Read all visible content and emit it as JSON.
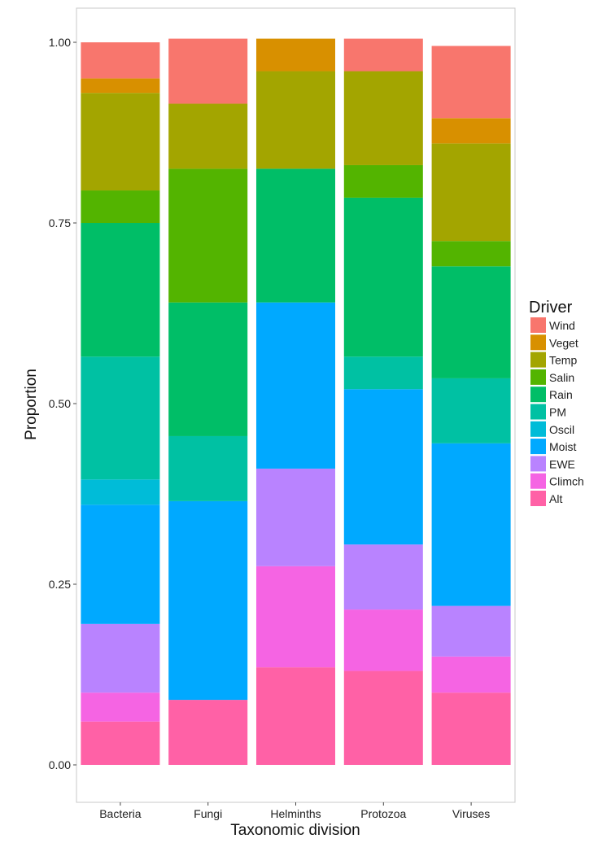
{
  "chart_data": {
    "type": "bar",
    "stacked": true,
    "xlabel": "Taxonomic division",
    "ylabel": "Proportion",
    "ylim": [
      0,
      1
    ],
    "yticks": [
      "0.00",
      "0.25",
      "0.50",
      "0.75",
      "1.00"
    ],
    "ytick_values": [
      0,
      0.25,
      0.5,
      0.75,
      1.0
    ],
    "grid": false,
    "legend_position": "right",
    "legend_title": "Driver",
    "categories": [
      "Bacteria",
      "Fungi",
      "Helminths",
      "Protozoa",
      "Viruses"
    ],
    "series": [
      {
        "name": "Alt",
        "color": "#FF61A6",
        "values": [
          0.06,
          0.09,
          0.135,
          0.13,
          0.1
        ]
      },
      {
        "name": "Climch",
        "color": "#F564E3",
        "values": [
          0.04,
          0.0,
          0.14,
          0.085,
          0.05
        ]
      },
      {
        "name": "EWE",
        "color": "#B983FF",
        "values": [
          0.095,
          0.0,
          0.135,
          0.09,
          0.07
        ]
      },
      {
        "name": "Moist",
        "color": "#00A9FF",
        "values": [
          0.165,
          0.275,
          0.23,
          0.215,
          0.225
        ]
      },
      {
        "name": "Oscil",
        "color": "#00BCD8",
        "values": [
          0.035,
          0.0,
          0.0,
          0.0,
          0.0
        ]
      },
      {
        "name": "PM",
        "color": "#00C1A3",
        "values": [
          0.17,
          0.09,
          0.0,
          0.045,
          0.09
        ]
      },
      {
        "name": "Rain",
        "color": "#00BE67",
        "values": [
          0.185,
          0.185,
          0.185,
          0.22,
          0.155
        ]
      },
      {
        "name": "Salin",
        "color": "#53B400",
        "values": [
          0.045,
          0.185,
          0.0,
          0.045,
          0.035
        ]
      },
      {
        "name": "Temp",
        "color": "#A3A500",
        "values": [
          0.135,
          0.09,
          0.135,
          0.13,
          0.135
        ]
      },
      {
        "name": "Veget",
        "color": "#D89000",
        "values": [
          0.02,
          0.0,
          0.045,
          0.0,
          0.035
        ]
      },
      {
        "name": "Wind",
        "color": "#F8766D",
        "values": [
          0.05,
          0.09,
          0.0,
          0.045,
          0.1
        ]
      }
    ]
  }
}
